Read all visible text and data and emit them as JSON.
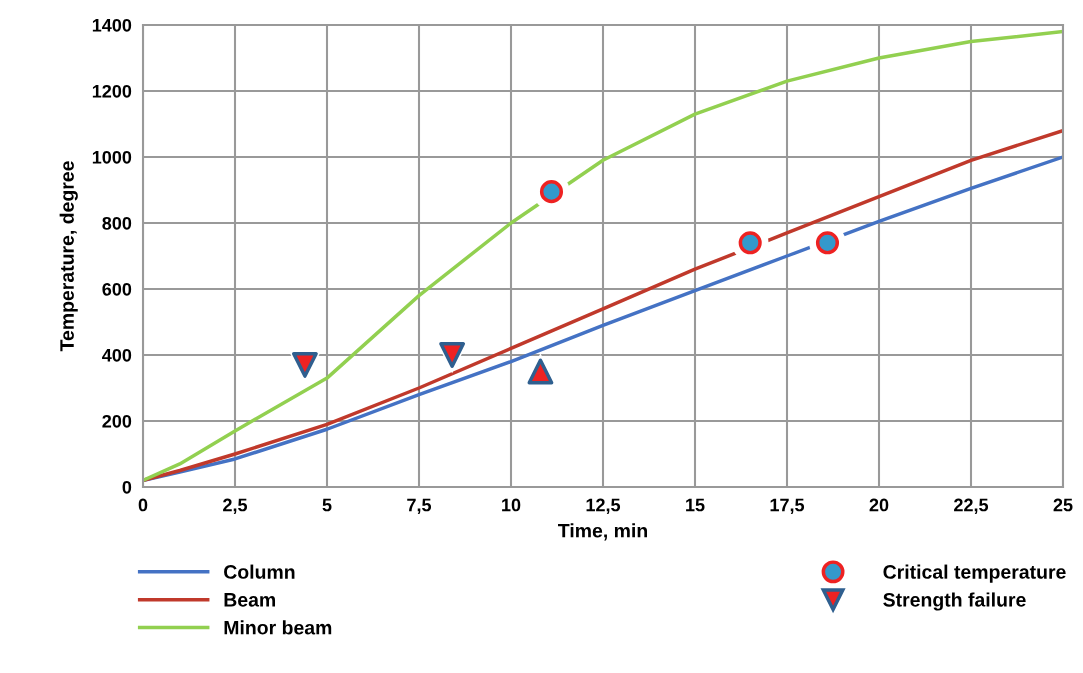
{
  "chart_data": {
    "type": "line",
    "xlabel": "Time, min",
    "ylabel": "Temperature, degree",
    "xlim": [
      0,
      25
    ],
    "ylim": [
      0,
      1400
    ],
    "xticks": [
      0,
      {
        "value": 2.5,
        "label": "2,5"
      },
      5,
      {
        "value": 7.5,
        "label": "7,5"
      },
      10,
      {
        "value": 12.5,
        "label": "12,5"
      },
      15,
      {
        "value": 17.5,
        "label": "17,5"
      },
      20,
      {
        "value": 22.5,
        "label": "22,5"
      },
      25
    ],
    "yticks": [
      0,
      200,
      400,
      600,
      800,
      1000,
      1200,
      1400
    ],
    "grid": true,
    "legend": "bottom",
    "marker": "none",
    "line_style": "solid",
    "series": [
      {
        "name": "Column",
        "color": "#4472c4",
        "x": [
          0,
          1,
          2.5,
          5,
          7.5,
          10,
          12.5,
          15,
          17.5,
          20,
          22.5,
          25
        ],
        "values": [
          20,
          45,
          85,
          175,
          280,
          380,
          490,
          595,
          700,
          805,
          905,
          1000
        ]
      },
      {
        "name": "Beam",
        "color": "#c0392b",
        "x": [
          0,
          1,
          2.5,
          5,
          7.5,
          10,
          12.5,
          15,
          17.5,
          20,
          22.5,
          25
        ],
        "values": [
          20,
          50,
          100,
          190,
          300,
          420,
          540,
          660,
          770,
          880,
          990,
          1080
        ]
      },
      {
        "name": "Minor beam",
        "color": "#92d050",
        "x": [
          0,
          1,
          2.5,
          5,
          7.5,
          10,
          12.5,
          15,
          17.5,
          20,
          22.5,
          25
        ],
        "values": [
          20,
          70,
          170,
          330,
          580,
          800,
          990,
          1130,
          1230,
          1300,
          1350,
          1380
        ]
      },
      {
        "name": "Critical temperature",
        "type": "scatter",
        "marker": "circle",
        "color": "#3399cc",
        "x": [
          11.1,
          16.5,
          18.6
        ],
        "values": [
          895,
          740,
          740
        ]
      },
      {
        "name": "Strength failure",
        "type": "scatter",
        "marker": "triangle_down",
        "color": "#ee2222",
        "x": [
          4.4,
          8.4
        ],
        "values": [
          370,
          400
        ]
      },
      {
        "type": "scatter",
        "marker": "triangle",
        "color": "#ee2222",
        "x": [
          10.8
        ],
        "values": [
          350
        ]
      }
    ]
  }
}
